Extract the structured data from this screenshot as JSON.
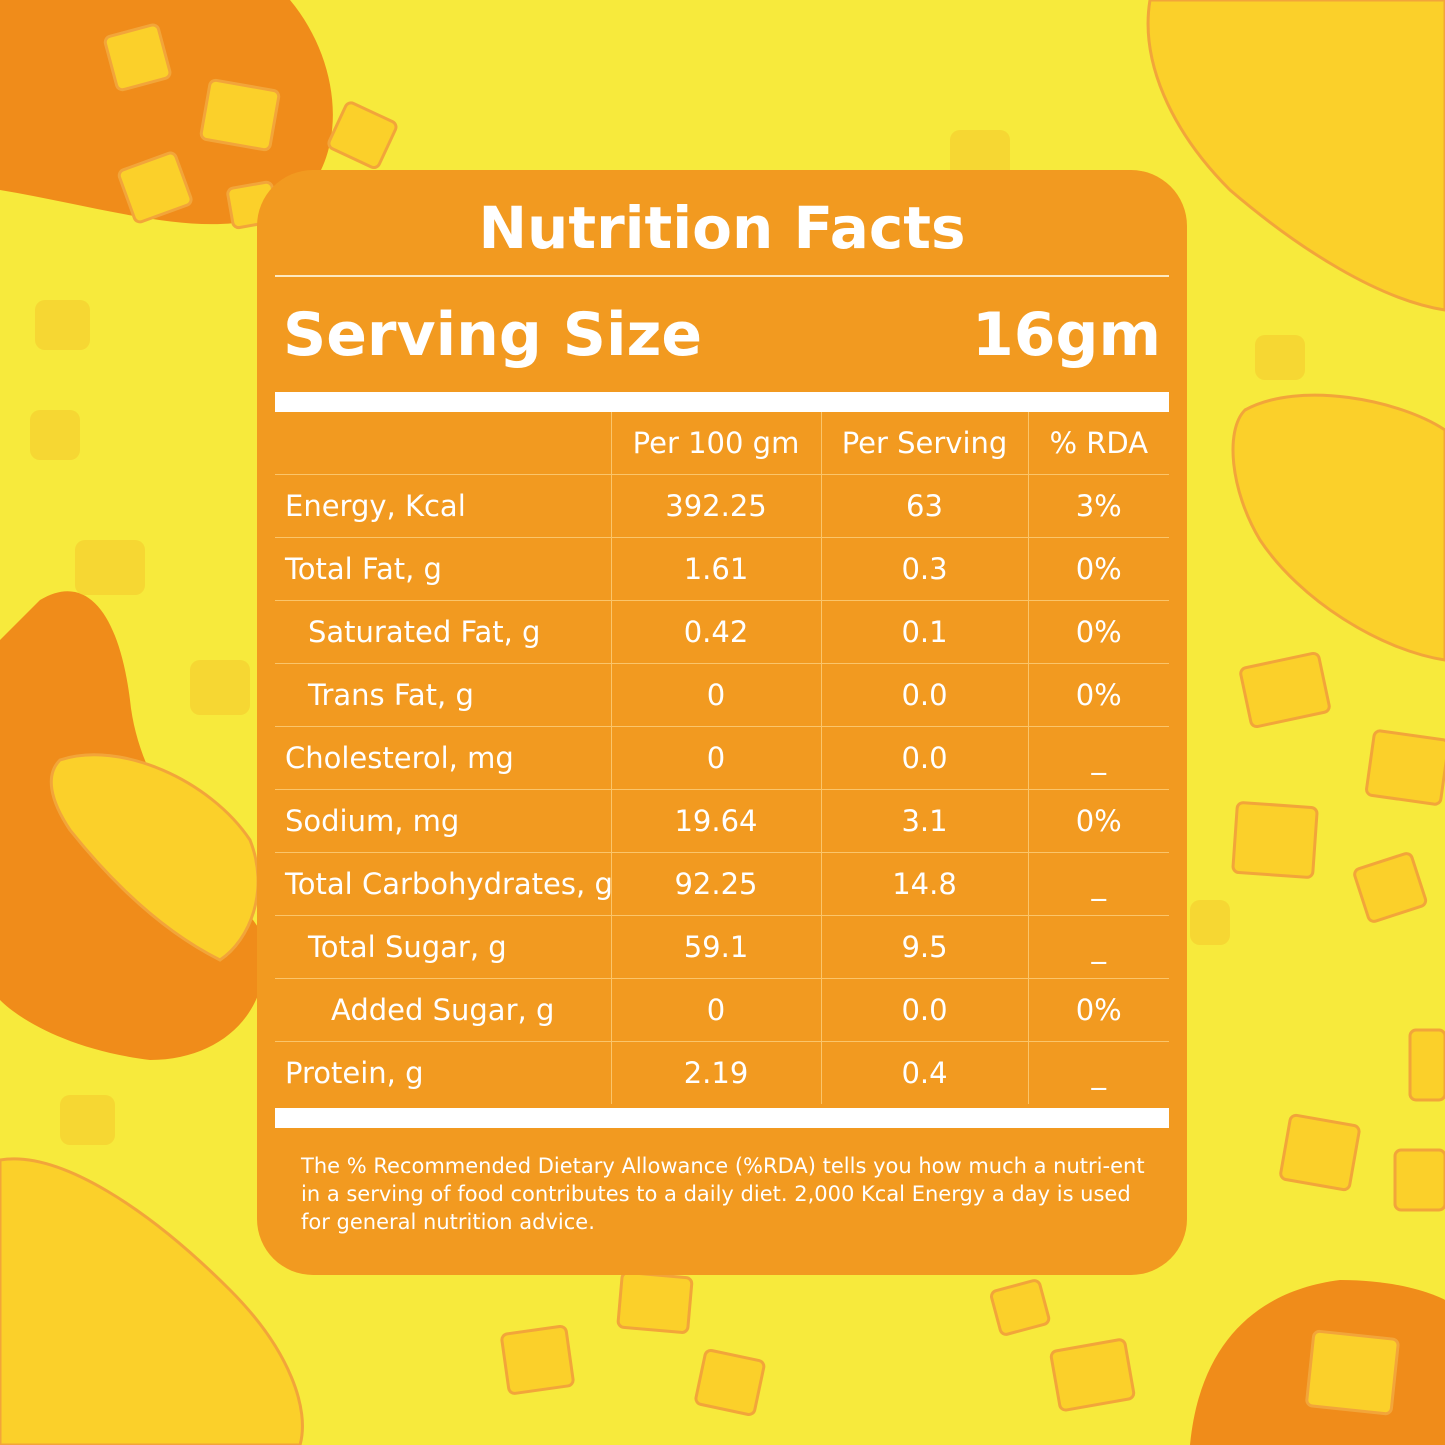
{
  "colors": {
    "background": "#f7ea3c",
    "card": "#f29a20",
    "mango_dark": "#f08c1a",
    "mango_light": "#fbd02a",
    "text": "#ffffff"
  },
  "label": {
    "title": "Nutrition Facts",
    "serving_size_label": "Serving Size",
    "serving_size_value": "16gm",
    "columns": [
      "",
      "Per 100 gm",
      "Per Serving",
      "% RDA"
    ],
    "rows": [
      {
        "name": "Energy, Kcal",
        "per_100": "392.25",
        "per_serving": "63",
        "rda": "3%"
      },
      {
        "name": "Total Fat, g",
        "per_100": "1.61",
        "per_serving": "0.3",
        "rda": "0%"
      },
      {
        "name": "Saturated Fat, g",
        "per_100": "0.42",
        "per_serving": "0.1",
        "rda": "0%"
      },
      {
        "name": "Trans Fat, g",
        "per_100": "0",
        "per_serving": "0.0",
        "rda": "0%"
      },
      {
        "name": "Cholesterol, mg",
        "per_100": "0",
        "per_serving": "0.0",
        "rda": "_"
      },
      {
        "name": "Sodium, mg",
        "per_100": "19.64",
        "per_serving": "3.1",
        "rda": "0%"
      },
      {
        "name": "Total Carbohydrates, g",
        "per_100": "92.25",
        "per_serving": "14.8",
        "rda": "_"
      },
      {
        "name": "Total Sugar, g",
        "per_100": "59.1",
        "per_serving": "9.5",
        "rda": "_"
      },
      {
        "name": "Added Sugar, g",
        "per_100": "0",
        "per_serving": "0.0",
        "rda": "0%"
      },
      {
        "name": "Protein, g",
        "per_100": "2.19",
        "per_serving": "0.4",
        "rda": "_"
      }
    ],
    "footnote": "The % Recommended Dietary Allowance (%RDA) tells you how much a nutri-ent in a serving of food contributes to a daily diet. 2,000 Kcal Energy a day is used for general nutrition advice."
  }
}
